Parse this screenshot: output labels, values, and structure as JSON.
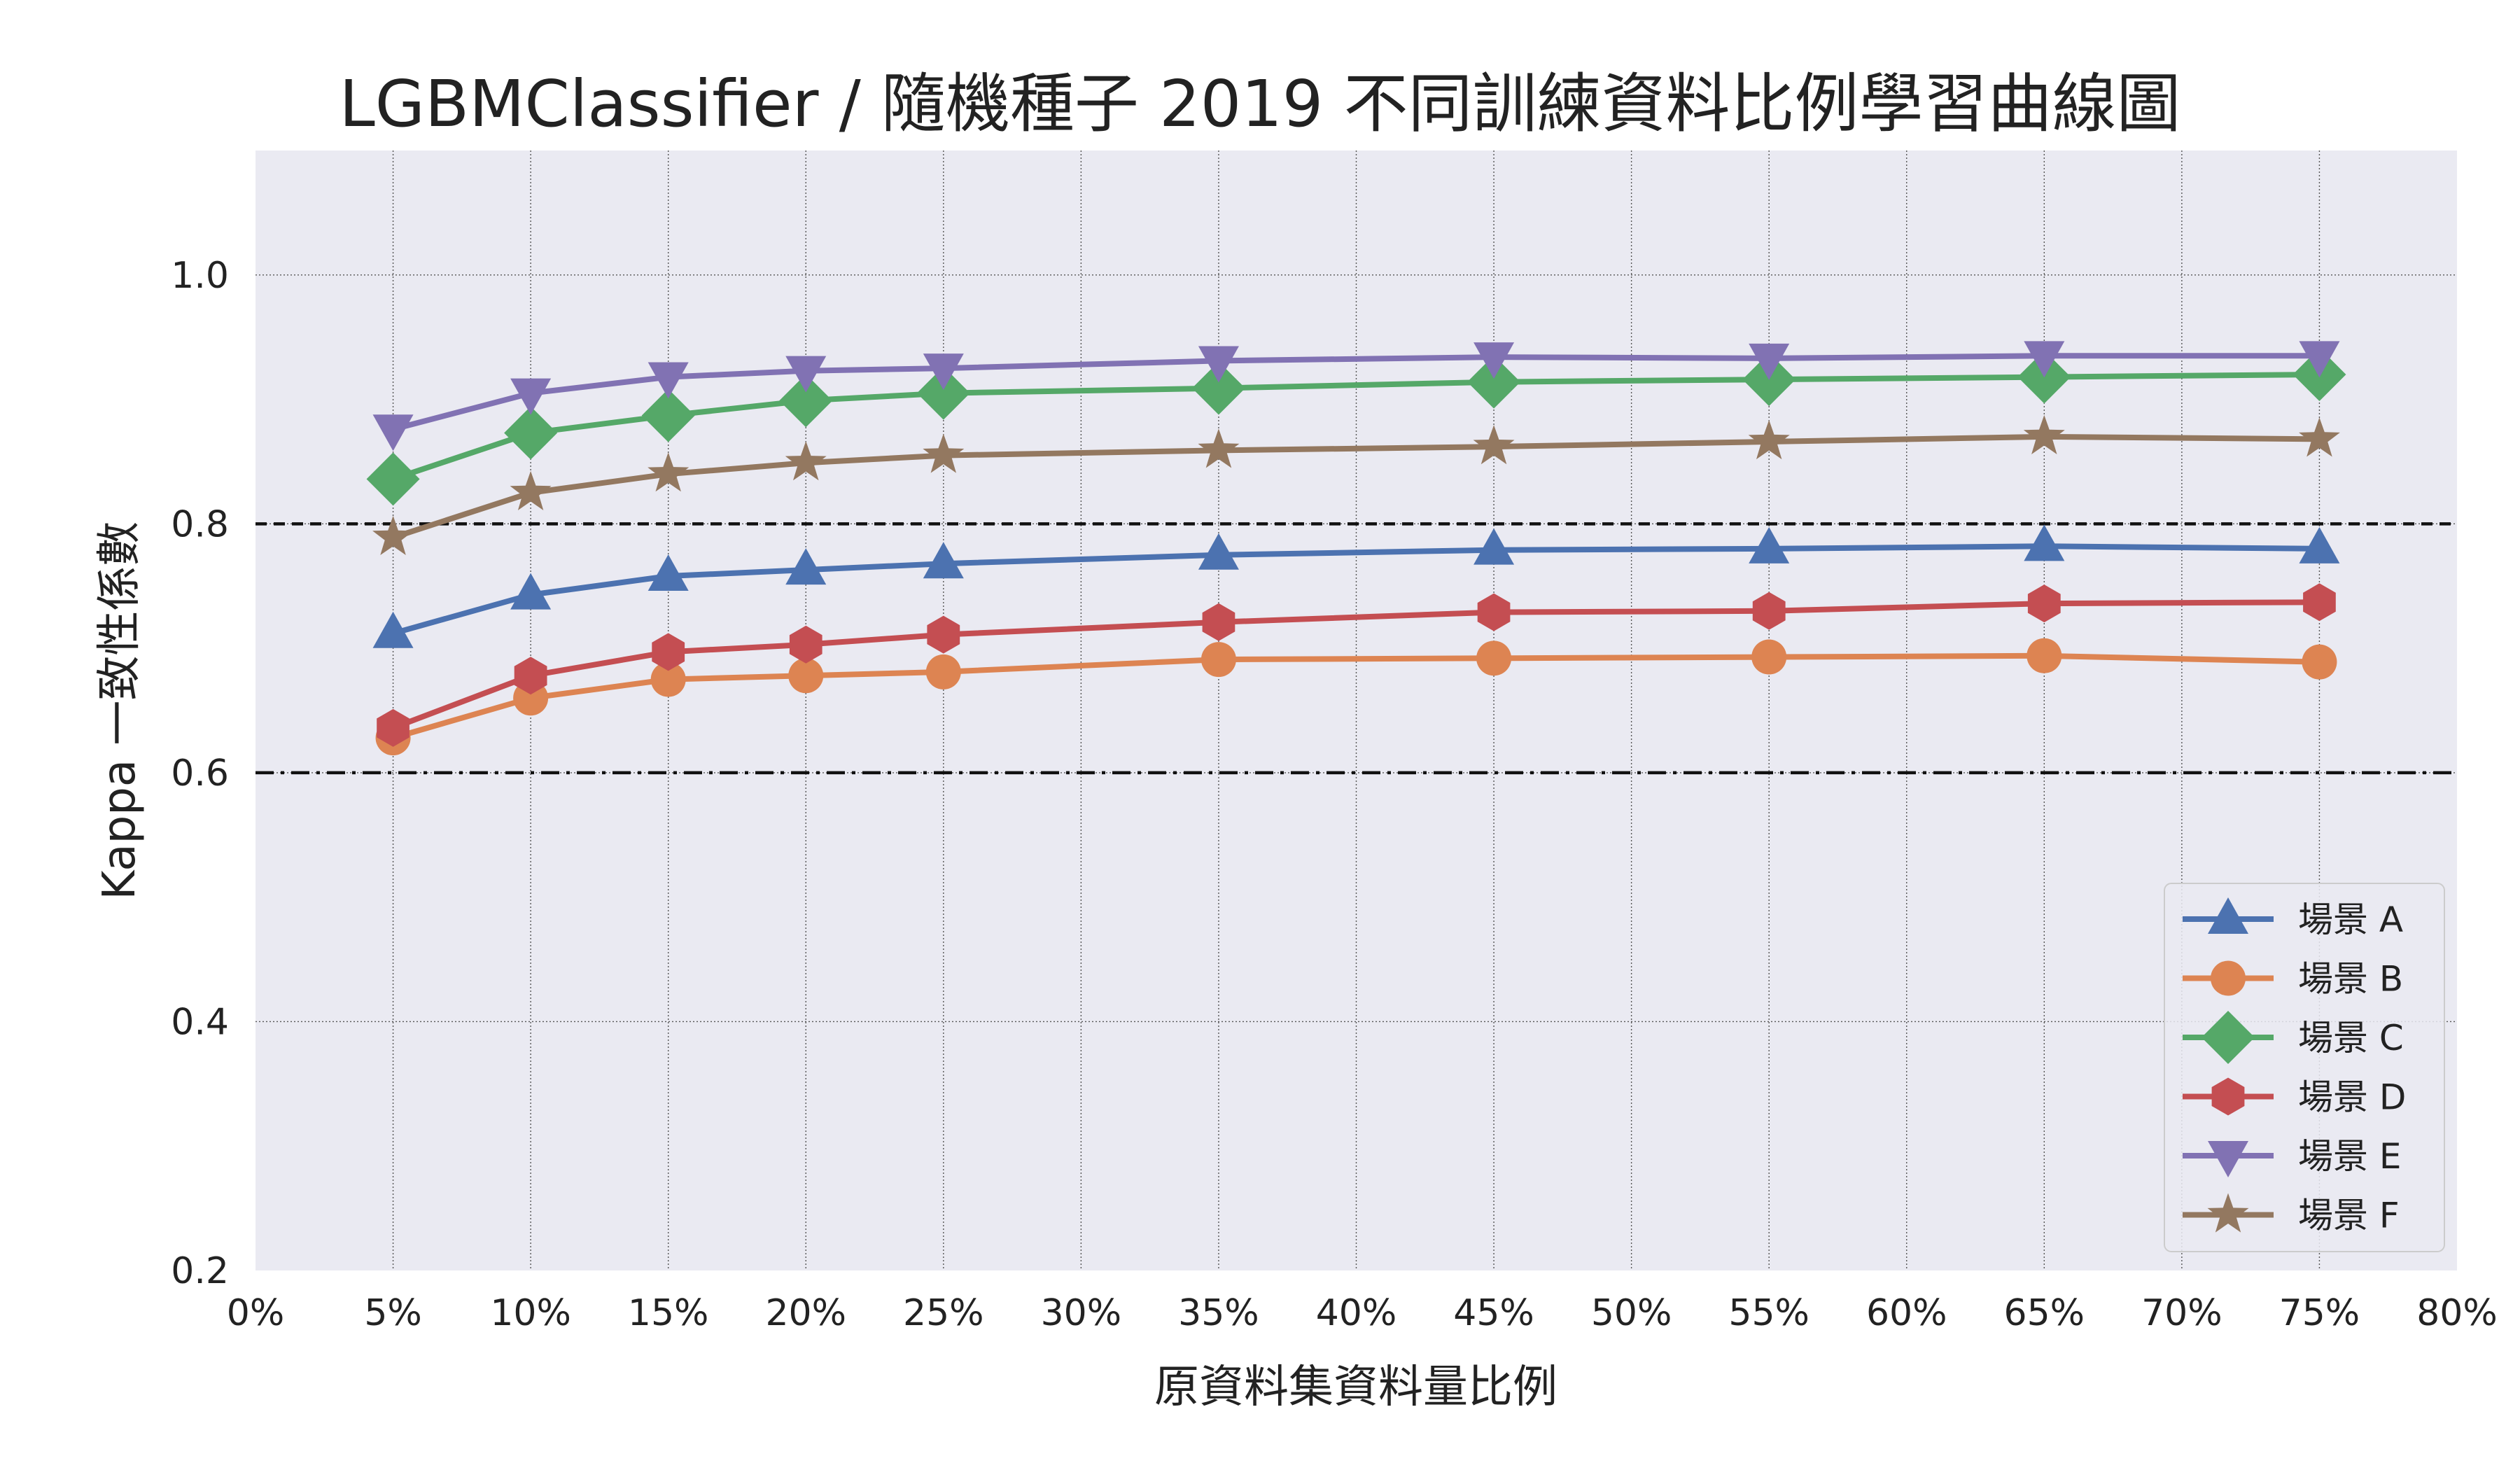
{
  "chart_data": {
    "type": "line",
    "title": "LGBMClassifier / 隨機種子 2019 不同訓練資料比例學習曲線圖",
    "xlabel": "原資料集資料量比例",
    "ylabel": "Kappa 一致性係數",
    "xlim": [
      0,
      80
    ],
    "ylim": [
      0.2,
      1.1
    ],
    "x_ticks": [
      "0%",
      "5%",
      "10%",
      "15%",
      "20%",
      "25%",
      "30%",
      "35%",
      "40%",
      "45%",
      "50%",
      "55%",
      "60%",
      "65%",
      "70%",
      "75%",
      "80%"
    ],
    "y_ticks": [
      "0.2",
      "0.4",
      "0.6",
      "0.8",
      "1.0"
    ],
    "x": [
      5,
      10,
      15,
      20,
      25,
      35,
      45,
      55,
      65,
      75
    ],
    "grid": true,
    "legend_position": "lower-right",
    "reference_lines": [
      {
        "y": 0.8,
        "style": "dashed",
        "color": "#111111"
      },
      {
        "y": 0.6,
        "style": "dashdot",
        "color": "#111111"
      }
    ],
    "series": [
      {
        "name": "場景 A",
        "marker": "triangle-up",
        "color": "#4C72B0",
        "values": [
          0.712,
          0.743,
          0.758,
          0.763,
          0.768,
          0.775,
          0.779,
          0.78,
          0.782,
          0.78
        ]
      },
      {
        "name": "場景 B",
        "marker": "circle",
        "color": "#DD8452",
        "values": [
          0.628,
          0.66,
          0.675,
          0.678,
          0.681,
          0.691,
          0.692,
          0.693,
          0.694,
          0.689
        ]
      },
      {
        "name": "場景 C",
        "marker": "diamond",
        "color": "#55A868",
        "values": [
          0.836,
          0.873,
          0.887,
          0.899,
          0.905,
          0.909,
          0.914,
          0.916,
          0.918,
          0.92
        ]
      },
      {
        "name": "場景 D",
        "marker": "hexagon",
        "color": "#C44E52",
        "values": [
          0.636,
          0.678,
          0.697,
          0.703,
          0.711,
          0.721,
          0.729,
          0.73,
          0.736,
          0.737
        ]
      },
      {
        "name": "場景 E",
        "marker": "triangle-down",
        "color": "#8172B3",
        "values": [
          0.876,
          0.905,
          0.918,
          0.923,
          0.925,
          0.931,
          0.934,
          0.933,
          0.935,
          0.935
        ]
      },
      {
        "name": "場景 F",
        "marker": "star",
        "color": "#937860",
        "values": [
          0.789,
          0.825,
          0.84,
          0.849,
          0.855,
          0.859,
          0.862,
          0.866,
          0.87,
          0.868
        ]
      }
    ]
  }
}
